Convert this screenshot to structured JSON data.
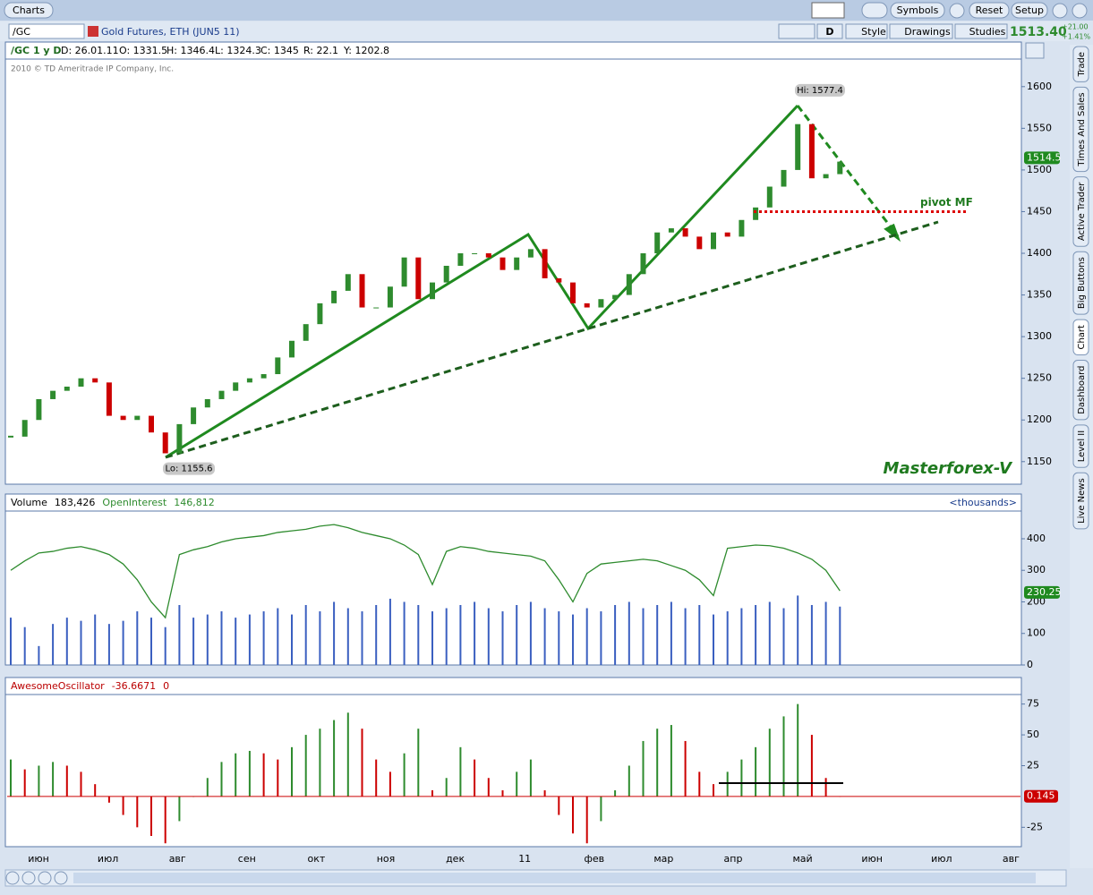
{
  "toolbar": {
    "tab": "Charts",
    "buttons": [
      "Symbols",
      "Reset",
      "Setup"
    ]
  },
  "symbol_bar": {
    "symbol": "/GC",
    "description": "Gold Futures, ETH (JUN5 11)",
    "aggregation": "D",
    "buttons": [
      "Style",
      "Drawings",
      "Studies"
    ],
    "last": "1513.40",
    "change": "+21.00",
    "change_pct": "+1.41%"
  },
  "side_tabs": [
    "Trade",
    "Times And Sales",
    "Active Trader",
    "Big Buttons",
    "Chart",
    "Dashboard",
    "Level II",
    "Live News"
  ],
  "chart_data": [
    {
      "type": "candlestick",
      "info": [
        "/GC 1 y D",
        "D: 26.01.11",
        "O: 1331.5",
        "H: 1346.4",
        "L: 1324.3",
        "C: 1345",
        "R: 22.1",
        "Y: 1202.8"
      ],
      "copyright": "2010 © TD Ameritrade IP Company, Inc.",
      "watermark": "Masterforex-V",
      "values": [
        1180,
        1200,
        1225,
        1235,
        1240,
        1250,
        1245,
        1205,
        1200,
        1205,
        1185,
        1160,
        1195,
        1215,
        1225,
        1235,
        1245,
        1250,
        1255,
        1275,
        1295,
        1315,
        1340,
        1355,
        1375,
        1335,
        1335,
        1360,
        1395,
        1345,
        1365,
        1385,
        1400,
        1400,
        1395,
        1380,
        1395,
        1405,
        1370,
        1365,
        1340,
        1335,
        1345,
        1350,
        1375,
        1400,
        1425,
        1430,
        1420,
        1405,
        1425,
        1420,
        1440,
        1455,
        1480,
        1500,
        1555,
        1490,
        1495,
        1510
      ],
      "up_color": "#2e8b2e",
      "down_color": "#cc0000",
      "high": {
        "value": 1577.4,
        "label": "Hi: 1577.4"
      },
      "low": {
        "value": 1155.6,
        "label": "Lo: 1155.6"
      },
      "pivot": {
        "value": 1450,
        "label": "pivot MF",
        "color": "#dd0000"
      },
      "last_price": 1514.5,
      "ylim": [
        1124,
        1632
      ],
      "yticks": [
        1150,
        1200,
        1250,
        1300,
        1350,
        1400,
        1450,
        1500,
        1550,
        1600
      ]
    },
    {
      "type": "bar",
      "units": "<thousands>",
      "series": [
        {
          "name": "Volume",
          "type": "bar",
          "color": "#3a5fc0",
          "last_label": "183,426",
          "values": [
            150,
            120,
            60,
            130,
            150,
            140,
            160,
            130,
            140,
            170,
            150,
            120,
            190,
            150,
            160,
            170,
            150,
            160,
            170,
            180,
            160,
            190,
            170,
            200,
            180,
            170,
            190,
            210,
            200,
            190,
            170,
            180,
            190,
            200,
            180,
            170,
            190,
            200,
            180,
            170,
            160,
            180,
            170,
            190,
            200,
            180,
            190,
            200,
            180,
            190,
            160,
            170,
            180,
            190,
            200,
            180,
            220,
            190,
            200,
            185
          ]
        },
        {
          "name": "OpenInterest",
          "type": "line",
          "color": "#2e8b2e",
          "last_label": "146,812",
          "values": [
            300,
            330,
            355,
            360,
            370,
            375,
            365,
            350,
            320,
            270,
            200,
            150,
            350,
            365,
            375,
            390,
            400,
            405,
            410,
            420,
            425,
            430,
            440,
            445,
            435,
            420,
            410,
            400,
            380,
            350,
            255,
            360,
            375,
            370,
            360,
            355,
            350,
            345,
            330,
            270,
            200,
            290,
            320,
            325,
            330,
            335,
            330,
            315,
            300,
            270,
            220,
            370,
            375,
            380,
            378,
            370,
            355,
            335,
            300,
            235
          ]
        }
      ],
      "last_value": 230.25,
      "ylim": [
        0,
        485
      ],
      "yticks": [
        0,
        100,
        200,
        300,
        400
      ]
    },
    {
      "type": "bar",
      "series": [
        {
          "name": "AwesomeOscillator",
          "up_color": "#2e8b2e",
          "down_color": "#cc0000",
          "header_values": [
            "-36.6671",
            "0"
          ],
          "values": [
            30,
            22,
            25,
            28,
            25,
            20,
            10,
            -5,
            -15,
            -25,
            -32,
            -38,
            -20,
            0,
            15,
            28,
            35,
            37,
            35,
            30,
            40,
            50,
            55,
            62,
            68,
            55,
            30,
            20,
            35,
            55,
            5,
            15,
            40,
            30,
            15,
            5,
            20,
            30,
            5,
            -15,
            -30,
            -38,
            -20,
            5,
            25,
            45,
            55,
            58,
            45,
            20,
            10,
            20,
            30,
            40,
            55,
            65,
            75,
            50,
            15,
            0.145
          ]
        }
      ],
      "last_value": 0.145,
      "x_labels": [
        "июн",
        "июл",
        "авг",
        "сен",
        "окт",
        "ноя",
        "дек",
        "11",
        "фев",
        "мар",
        "апр",
        "май",
        "июн",
        "июл",
        "авг"
      ],
      "ylim": [
        -40,
        82
      ],
      "yticks": [
        -25,
        25,
        50,
        75
      ]
    }
  ]
}
